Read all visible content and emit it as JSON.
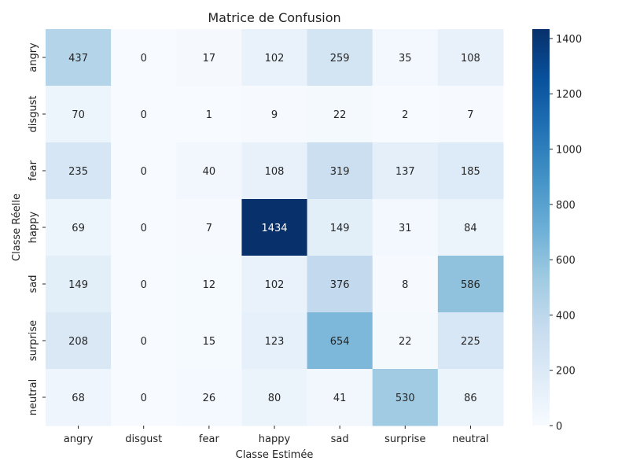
{
  "chart_data": {
    "type": "heatmap",
    "title": "Matrice de Confusion",
    "xlabel": "Classe Estimée",
    "ylabel": "Classe Réelle",
    "x_categories": [
      "angry",
      "disgust",
      "fear",
      "happy",
      "sad",
      "surprise",
      "neutral"
    ],
    "y_categories": [
      "angry",
      "disgust",
      "fear",
      "happy",
      "sad",
      "surprise",
      "neutral"
    ],
    "values": [
      [
        437,
        0,
        17,
        102,
        259,
        35,
        108
      ],
      [
        70,
        0,
        1,
        9,
        22,
        2,
        7
      ],
      [
        235,
        0,
        40,
        108,
        319,
        137,
        185
      ],
      [
        69,
        0,
        7,
        1434,
        149,
        31,
        84
      ],
      [
        149,
        0,
        12,
        102,
        376,
        8,
        586
      ],
      [
        208,
        0,
        15,
        123,
        654,
        22,
        225
      ],
      [
        68,
        0,
        26,
        80,
        41,
        530,
        86
      ]
    ],
    "colormap": "Blues",
    "colorbar": {
      "min": 0,
      "max": 1434,
      "ticks": [
        0,
        200,
        400,
        600,
        800,
        1000,
        1200,
        1400
      ]
    }
  }
}
